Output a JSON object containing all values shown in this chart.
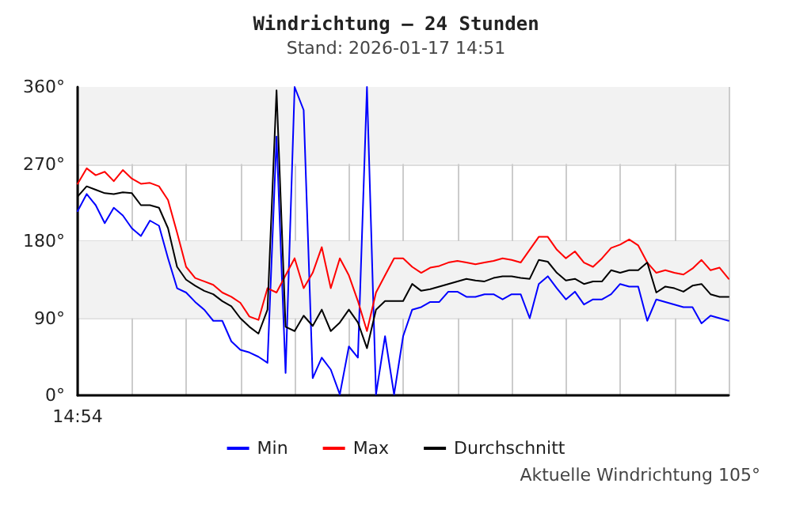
{
  "chart_data": {
    "type": "line",
    "title": "Windrichtung – 24 Stunden",
    "subtitle": "Stand: 2026-01-17 14:51",
    "annotations": [
      "Aktuelle Windrichtung 105°"
    ],
    "categories": [
      "14:54",
      null,
      null,
      null,
      null,
      null,
      null,
      null,
      null,
      null,
      null,
      null,
      null,
      null,
      null,
      null,
      null,
      null,
      null,
      null,
      null,
      null,
      null,
      null,
      null,
      null,
      null,
      null,
      null,
      null,
      null,
      null,
      null,
      null,
      null,
      null,
      null,
      null,
      null,
      null,
      null,
      null,
      null,
      null,
      null,
      null,
      null,
      null,
      null,
      null,
      null,
      null,
      null,
      null,
      null,
      null,
      null,
      null,
      null,
      null,
      null,
      null,
      null,
      null,
      null,
      null,
      null,
      null,
      null,
      null,
      null,
      null,
      null
    ],
    "ylim": [
      0,
      360
    ],
    "yticks": [
      {
        "value": 0,
        "label": "0°"
      },
      {
        "value": 90,
        "label": "90°"
      },
      {
        "value": 180,
        "label": "180°"
      },
      {
        "value": 270,
        "label": "270°"
      },
      {
        "value": 360,
        "label": "360°"
      }
    ],
    "bands": [
      {
        "axis": "y",
        "from": 90,
        "to": 180,
        "color": "#f2f2f2"
      },
      {
        "axis": "y",
        "from": 270,
        "to": 360,
        "color": "#f2f2f2"
      }
    ],
    "grid": true,
    "legend": "bottom",
    "marker": "none",
    "line_style": "solid",
    "series": [
      {
        "name": "Min",
        "color": "#0000ff",
        "values": [
          215,
          235,
          222,
          201,
          219,
          210,
          195,
          186,
          204,
          198,
          160,
          125,
          120,
          109,
          100,
          87,
          87,
          63,
          53,
          50,
          45,
          38,
          302,
          26,
          360,
          333,
          20,
          44,
          30,
          1,
          57,
          44,
          360,
          1,
          69,
          1,
          69,
          100,
          103,
          109,
          109,
          121,
          121,
          115,
          115,
          118,
          118,
          112,
          118,
          118,
          90,
          130,
          139,
          125,
          112,
          121,
          106,
          112,
          112,
          118,
          130,
          127,
          127,
          87,
          112,
          109,
          106,
          103,
          103,
          84,
          93,
          90,
          87
        ]
      },
      {
        "name": "Max",
        "color": "#ff0000",
        "values": [
          247,
          265,
          257,
          261,
          250,
          263,
          253,
          247,
          248,
          244,
          228,
          190,
          150,
          137,
          133,
          129,
          120,
          115,
          108,
          92,
          88,
          125,
          120,
          140,
          160,
          125,
          143,
          173,
          125,
          160,
          140,
          110,
          75,
          120,
          140,
          160,
          160,
          150,
          143,
          149,
          151,
          155,
          157,
          155,
          153,
          155,
          157,
          160,
          158,
          155,
          170,
          185,
          185,
          170,
          160,
          168,
          155,
          150,
          160,
          172,
          176,
          182,
          175,
          155,
          143,
          146,
          143,
          141,
          148,
          158,
          146,
          149,
          136
        ]
      },
      {
        "name": "Durchschnitt",
        "color": "#000000",
        "values": [
          232,
          244,
          240,
          236,
          235,
          237,
          236,
          222,
          222,
          219,
          195,
          150,
          135,
          128,
          122,
          118,
          110,
          104,
          90,
          80,
          72,
          100,
          356,
          80,
          75,
          93,
          81,
          100,
          75,
          85,
          100,
          85,
          55,
          100,
          110,
          110,
          110,
          130,
          122,
          124,
          127,
          130,
          133,
          136,
          134,
          133,
          137,
          139,
          139,
          137,
          136,
          158,
          156,
          143,
          134,
          136,
          130,
          133,
          133,
          146,
          143,
          146,
          146,
          155,
          120,
          127,
          125,
          121,
          128,
          130,
          118,
          115,
          115
        ]
      }
    ]
  }
}
